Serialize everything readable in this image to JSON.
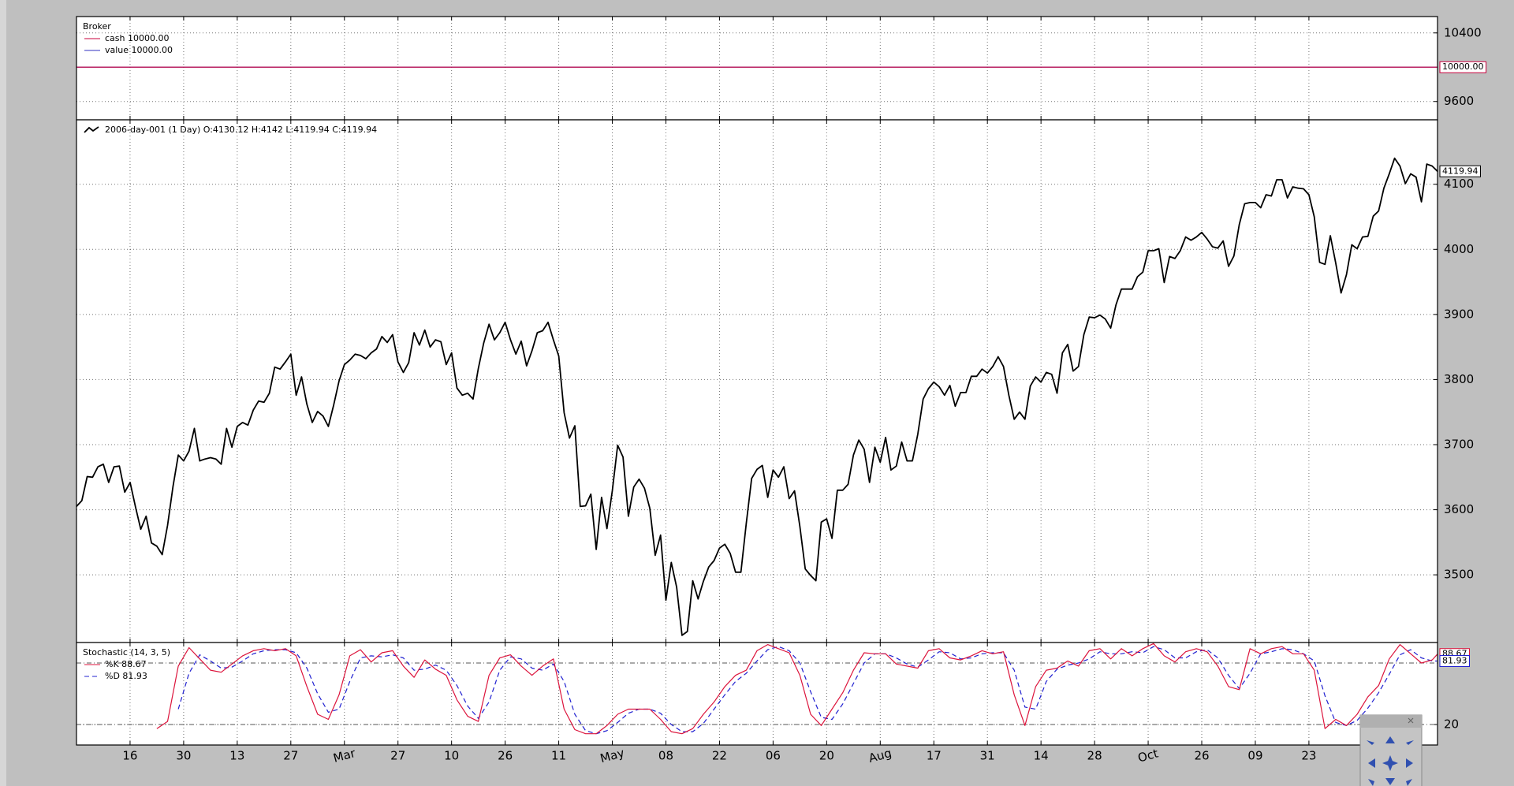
{
  "chart_data": [
    {
      "type": "line",
      "title": "Broker",
      "xlim": [
        0,
        254
      ],
      "ylim": [
        9386,
        10591
      ],
      "yticks": [
        9600,
        10400
      ],
      "grid": true,
      "series": [
        {
          "name": "cash 10000.00",
          "color": "#c8003c",
          "x": [
            0,
            254
          ],
          "values": [
            10000,
            10000
          ]
        },
        {
          "name": "value 10000.00",
          "color": "#3030c0",
          "x": [
            0,
            254
          ],
          "values": [
            10000,
            10000
          ]
        }
      ],
      "last_label": {
        "value": 10000,
        "label": "10000.00"
      }
    },
    {
      "type": "line",
      "xlim": [
        0,
        254
      ],
      "ylim": [
        3396,
        4199
      ],
      "yticks": [
        3500,
        3600,
        3700,
        3800,
        3900,
        4000,
        4100
      ],
      "grid": true,
      "series": [
        {
          "name": "2006-day-001 (1 Day) O:4130.12 H:4142 L:4119.94 C:4119.94",
          "color": "#000000",
          "values": [
            3605,
            3614,
            3651,
            3650,
            3666,
            3670,
            3642,
            3666,
            3667,
            3627,
            3642,
            3605,
            3570,
            3590,
            3549,
            3544,
            3531,
            3576,
            3635,
            3684,
            3675,
            3690,
            3725,
            3675,
            3678,
            3680,
            3678,
            3670,
            3725,
            3696,
            3728,
            3734,
            3730,
            3753,
            3767,
            3765,
            3779,
            3819,
            3816,
            3827,
            3839,
            3776,
            3804,
            3762,
            3734,
            3751,
            3744,
            3728,
            3761,
            3798,
            3823,
            3830,
            3839,
            3837,
            3832,
            3841,
            3847,
            3866,
            3857,
            3869,
            3827,
            3811,
            3826,
            3872,
            3853,
            3876,
            3850,
            3861,
            3858,
            3823,
            3841,
            3787,
            3776,
            3779,
            3770,
            3817,
            3856,
            3885,
            3861,
            3872,
            3888,
            3861,
            3839,
            3859,
            3821,
            3844,
            3872,
            3875,
            3888,
            3861,
            3836,
            3749,
            3710,
            3729,
            3605,
            3606,
            3624,
            3539,
            3619,
            3571,
            3629,
            3699,
            3681,
            3590,
            3635,
            3647,
            3633,
            3602,
            3530,
            3561,
            3461,
            3519,
            3481,
            3407,
            3413,
            3491,
            3463,
            3490,
            3512,
            3522,
            3541,
            3547,
            3533,
            3504,
            3504,
            3579,
            3648,
            3662,
            3668,
            3619,
            3661,
            3650,
            3666,
            3617,
            3629,
            3574,
            3509,
            3499,
            3491,
            3581,
            3586,
            3556,
            3630,
            3630,
            3639,
            3684,
            3707,
            3693,
            3642,
            3696,
            3673,
            3711,
            3661,
            3667,
            3704,
            3675,
            3675,
            3716,
            3770,
            3786,
            3796,
            3789,
            3776,
            3791,
            3759,
            3780,
            3780,
            3805,
            3805,
            3816,
            3810,
            3820,
            3835,
            3820,
            3776,
            3739,
            3750,
            3739,
            3790,
            3804,
            3796,
            3811,
            3808,
            3779,
            3841,
            3854,
            3813,
            3820,
            3869,
            3896,
            3895,
            3899,
            3893,
            3879,
            3915,
            3939,
            3939,
            3939,
            3958,
            3965,
            3998,
            3998,
            4001,
            3949,
            3989,
            3986,
            3998,
            4019,
            4014,
            4019,
            4026,
            4016,
            4004,
            4002,
            4013,
            3974,
            3990,
            4038,
            4070,
            4072,
            4072,
            4064,
            4084,
            4082,
            4107,
            4107,
            4079,
            4096,
            4094,
            4093,
            4084,
            4050,
            3980,
            3977,
            4021,
            3979,
            3933,
            3961,
            4007,
            4001,
            4019,
            4020,
            4051,
            4059,
            4094,
            4116,
            4140,
            4128,
            4101,
            4116,
            4111,
            4073,
            4131,
            4128,
            4119.94
          ]
        }
      ]
    },
    {
      "type": "line",
      "title": "Stochastic (14, 3, 5)",
      "xlim": [
        0,
        254
      ],
      "ylim": [
        0,
        100
      ],
      "yticks": [
        20
      ],
      "hlines": [
        20,
        80
      ],
      "grid": true,
      "xticks": [
        {
          "value": 10,
          "label": "16"
        },
        {
          "value": 20,
          "label": "30"
        },
        {
          "value": 30,
          "label": "13"
        },
        {
          "value": 40,
          "label": "27"
        },
        {
          "value": 50,
          "label": "Mar"
        },
        {
          "value": 60,
          "label": "27"
        },
        {
          "value": 70,
          "label": "10"
        },
        {
          "value": 80,
          "label": "26"
        },
        {
          "value": 90,
          "label": "11"
        },
        {
          "value": 100,
          "label": "May"
        },
        {
          "value": 110,
          "label": "08"
        },
        {
          "value": 120,
          "label": "22"
        },
        {
          "value": 130,
          "label": "06"
        },
        {
          "value": 140,
          "label": "20"
        },
        {
          "value": 150,
          "label": "Aug"
        },
        {
          "value": 160,
          "label": "17"
        },
        {
          "value": 170,
          "label": "31"
        },
        {
          "value": 180,
          "label": "14"
        },
        {
          "value": 190,
          "label": "28"
        },
        {
          "value": 200,
          "label": "Oct"
        },
        {
          "value": 210,
          "label": "26"
        },
        {
          "value": 220,
          "label": "09"
        },
        {
          "value": 230,
          "label": "23"
        }
      ],
      "series": [
        {
          "name": "%K 88.67",
          "color": "#dc143c",
          "linestyle": "solid",
          "x": [
            15,
            17,
            19,
            21,
            23,
            25,
            27,
            29,
            31,
            33,
            35,
            37,
            39,
            41,
            43,
            45,
            47,
            49,
            51,
            53,
            55,
            57,
            59,
            61,
            63,
            65,
            67,
            69,
            71,
            73,
            75,
            77,
            79,
            81,
            83,
            85,
            87,
            89,
            91,
            93,
            95,
            97,
            99,
            101,
            103,
            105,
            107,
            109,
            111,
            113,
            115,
            117,
            119,
            121,
            123,
            125,
            127,
            129,
            131,
            133,
            135,
            137,
            139,
            141,
            143,
            145,
            147,
            149,
            151,
            153,
            155,
            157,
            159,
            161,
            163,
            165,
            167,
            169,
            171,
            173,
            175,
            177,
            179,
            181,
            183,
            185,
            187,
            189,
            191,
            193,
            195,
            197,
            199,
            201,
            203,
            205,
            207,
            209,
            211,
            213,
            215,
            217,
            219,
            221,
            223,
            225,
            227,
            229,
            231,
            233,
            235,
            237,
            239,
            241,
            243,
            245,
            247,
            249,
            251,
            253,
            254
          ],
          "values": [
            16,
            23,
            77,
            95,
            84,
            73,
            71,
            79,
            87,
            92,
            94,
            92,
            94,
            87,
            57,
            30,
            25,
            49,
            87,
            93,
            81,
            90,
            92,
            77,
            66,
            83,
            74,
            68,
            44,
            28,
            23,
            68,
            85,
            88,
            77,
            68,
            77,
            84,
            35,
            15,
            11,
            11,
            19,
            30,
            35,
            35,
            35,
            25,
            13,
            11,
            16,
            30,
            42,
            57,
            68,
            73,
            92,
            98,
            94,
            90,
            68,
            30,
            19,
            35,
            51,
            73,
            90,
            89,
            89,
            79,
            77,
            75,
            92,
            94,
            85,
            83,
            87,
            92,
            89,
            91,
            49,
            19,
            57,
            73,
            75,
            82,
            77,
            92,
            94,
            84,
            94,
            87,
            94,
            99,
            87,
            81,
            91,
            94,
            91,
            77,
            57,
            54,
            94,
            89,
            94,
            96,
            89,
            89,
            73,
            16,
            25,
            19,
            30,
            47,
            58,
            84,
            98,
            89,
            80,
            83,
            88.67
          ]
        },
        {
          "name": "%D 81.93",
          "color": "#2020d0",
          "linestyle": "dashed",
          "x": [
            15,
            17,
            19,
            21,
            23,
            25,
            27,
            29,
            31,
            33,
            35,
            37,
            39,
            41,
            43,
            45,
            47,
            49,
            51,
            53,
            55,
            57,
            59,
            61,
            63,
            65,
            67,
            69,
            71,
            73,
            75,
            77,
            79,
            81,
            83,
            85,
            87,
            89,
            91,
            93,
            95,
            97,
            99,
            101,
            103,
            105,
            107,
            109,
            111,
            113,
            115,
            117,
            119,
            121,
            123,
            125,
            127,
            129,
            131,
            133,
            135,
            137,
            139,
            141,
            143,
            145,
            147,
            149,
            151,
            153,
            155,
            157,
            159,
            161,
            163,
            165,
            167,
            169,
            171,
            173,
            175,
            177,
            179,
            181,
            183,
            185,
            187,
            189,
            191,
            193,
            195,
            197,
            199,
            201,
            203,
            205,
            207,
            209,
            211,
            213,
            215,
            217,
            219,
            221,
            223,
            225,
            227,
            229,
            231,
            233,
            235,
            237,
            239,
            241,
            243,
            245,
            247,
            249,
            251,
            253,
            254
          ],
          "values": [
            null,
            null,
            35,
            70,
            88,
            82,
            75,
            76,
            82,
            89,
            92,
            93,
            93,
            90,
            75,
            50,
            32,
            35,
            62,
            85,
            87,
            86,
            88,
            85,
            73,
            74,
            78,
            73,
            58,
            38,
            26,
            42,
            73,
            86,
            84,
            75,
            73,
            79,
            62,
            30,
            14,
            11,
            14,
            22,
            31,
            35,
            35,
            31,
            20,
            13,
            13,
            21,
            35,
            49,
            62,
            70,
            82,
            93,
            96,
            92,
            80,
            52,
            27,
            25,
            40,
            60,
            80,
            89,
            89,
            85,
            79,
            76,
            83,
            91,
            90,
            84,
            85,
            89,
            90,
            90,
            73,
            37,
            35,
            62,
            74,
            78,
            80,
            84,
            91,
            89,
            89,
            91,
            90,
            96,
            93,
            85,
            85,
            91,
            93,
            85,
            68,
            55,
            70,
            89,
            91,
            94,
            93,
            89,
            82,
            48,
            22,
            19,
            24,
            36,
            51,
            69,
            88,
            93,
            85,
            82,
            81.93
          ]
        }
      ]
    }
  ]
}
